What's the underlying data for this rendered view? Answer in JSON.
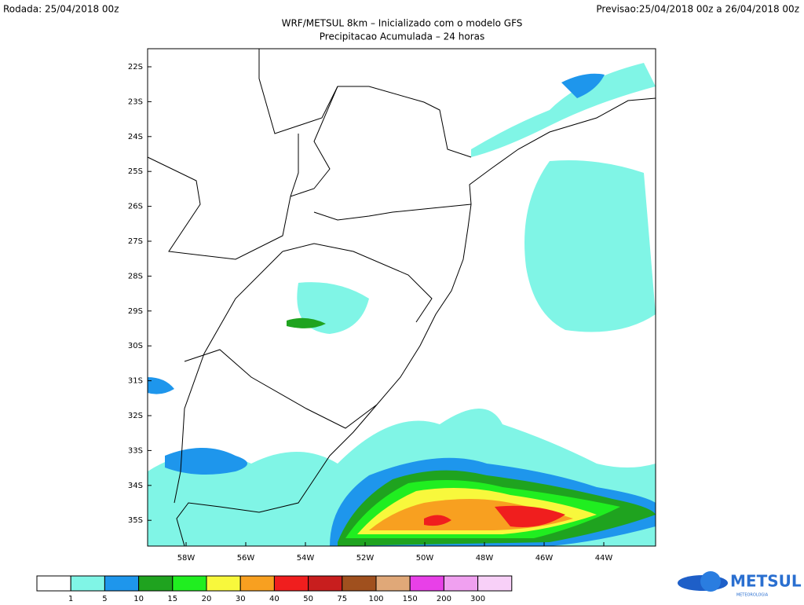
{
  "header": {
    "left": "Rodada: 25/04/2018 00z",
    "right": "Previsao:25/04/2018 00z a 26/04/2018 00z",
    "title": "WRF/METSUL 8km – Inicializado com o modelo GFS",
    "subtitle": "Precipitacao Acumulada – 24 horas"
  },
  "map": {
    "lat_labels": [
      "22S",
      "23S",
      "24S",
      "25S",
      "26S",
      "27S",
      "28S",
      "29S",
      "30S",
      "31S",
      "32S",
      "33S",
      "34S",
      "35S"
    ],
    "lon_labels": [
      "58W",
      "56W",
      "54W",
      "52W",
      "50W",
      "48W",
      "46W",
      "44W"
    ]
  },
  "legend": {
    "colors": [
      "#ffffff",
      "#80f5e6",
      "#1e96ec",
      "#1fa31f",
      "#20ee20",
      "#f8f83c",
      "#f8a020",
      "#f01e1e",
      "#c81e1e",
      "#a0501e",
      "#e0a878",
      "#e840e8",
      "#f0a0f0",
      "#f8d0f8"
    ],
    "labels": [
      "1",
      "5",
      "10",
      "15",
      "20",
      "30",
      "40",
      "50",
      "75",
      "100",
      "150",
      "200",
      "300"
    ]
  },
  "logo": {
    "name": "METSUL",
    "tagline": "METEOROLOGIA"
  }
}
